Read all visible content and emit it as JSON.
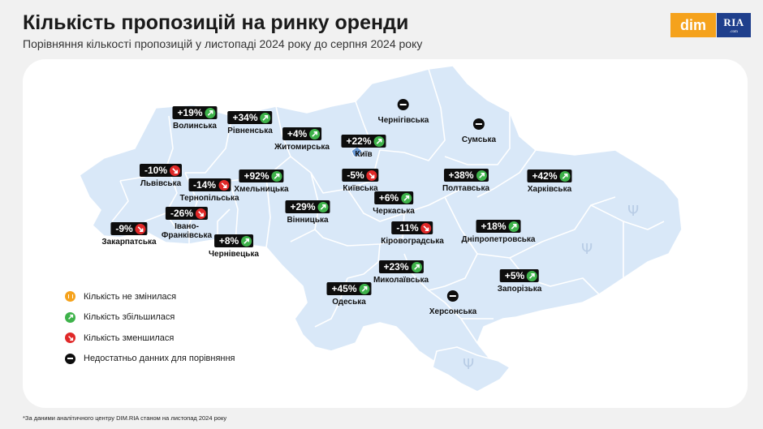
{
  "header": {
    "title": "Кількість пропозицій на ринку оренди",
    "subtitle": "Порівняння кількості пропозицій у листопаді 2024 року до серпня 2024 року"
  },
  "logos": {
    "dim": "dim",
    "ria": "RIA",
    "ria_small": ".com"
  },
  "colors": {
    "increase": "#3eb24a",
    "decrease": "#e02828",
    "unchanged": "#f5a21c",
    "no_data": "#0d0d0d",
    "map_fill": "#d9e8f8",
    "map_border": "#ffffff"
  },
  "regions": [
    {
      "id": "volynska",
      "name": "Волинська",
      "value": "+19%",
      "trend": "up"
    },
    {
      "id": "rivnenska",
      "name": "Рівненська",
      "value": "+34%",
      "trend": "up"
    },
    {
      "id": "zhytomyrska",
      "name": "Житомирська",
      "value": "+4%",
      "trend": "up"
    },
    {
      "id": "chernihivska",
      "name": "Чернігівська",
      "value": "",
      "trend": "none"
    },
    {
      "id": "sumska",
      "name": "Сумська",
      "value": "",
      "trend": "none"
    },
    {
      "id": "kyiv",
      "name": "Київ",
      "value": "+22%",
      "trend": "up"
    },
    {
      "id": "lvivska",
      "name": "Львівська",
      "value": "-10%",
      "trend": "down"
    },
    {
      "id": "ternopilska",
      "name": "Тернопільська",
      "value": "-14%",
      "trend": "down"
    },
    {
      "id": "khmelnytska",
      "name": "Хмельницька",
      "value": "+92%",
      "trend": "up"
    },
    {
      "id": "kyivska",
      "name": "Київська",
      "value": "-5%",
      "trend": "down"
    },
    {
      "id": "poltavska",
      "name": "Полтавська",
      "value": "+38%",
      "trend": "up"
    },
    {
      "id": "kharkivska",
      "name": "Харківська",
      "value": "+42%",
      "trend": "up"
    },
    {
      "id": "cherkaska",
      "name": "Черкаська",
      "value": "+6%",
      "trend": "up"
    },
    {
      "id": "vinnytska",
      "name": "Вінницька",
      "value": "+29%",
      "trend": "up"
    },
    {
      "id": "ivano-frankivska",
      "name": "Івано-\nФранківська",
      "value": "-26%",
      "trend": "down"
    },
    {
      "id": "zakarpatska",
      "name": "Закарпатська",
      "value": "-9%",
      "trend": "down"
    },
    {
      "id": "chernivetska",
      "name": "Чернівецька",
      "value": "+8%",
      "trend": "up"
    },
    {
      "id": "kirovohradska",
      "name": "Кіровоградська",
      "value": "-11%",
      "trend": "down"
    },
    {
      "id": "dnipropetrovska",
      "name": "Дніпропетровська",
      "value": "+18%",
      "trend": "up"
    },
    {
      "id": "mykolaivska",
      "name": "Миколаївська",
      "value": "+23%",
      "trend": "up"
    },
    {
      "id": "odeska",
      "name": "Одеська",
      "value": "+45%",
      "trend": "up"
    },
    {
      "id": "zaporizka",
      "name": "Запорізька",
      "value": "+5%",
      "trend": "up"
    },
    {
      "id": "khersonska",
      "name": "Херсонська",
      "value": "",
      "trend": "none"
    }
  ],
  "legend": [
    {
      "icon": "pause-icon",
      "kind": "same",
      "label": "Кількість не змінилася"
    },
    {
      "icon": "arrow-up-right-icon",
      "kind": "inc",
      "label": "Кількість збільшилася"
    },
    {
      "icon": "arrow-down-right-icon",
      "kind": "dec",
      "label": "Кількість зменшилася"
    },
    {
      "icon": "minus-icon",
      "kind": "na",
      "label": "Недостатньо данних для порівняння"
    }
  ],
  "footnote": "*За даними аналітичного центру DIM.RIA станом на листопад 2024 року"
}
